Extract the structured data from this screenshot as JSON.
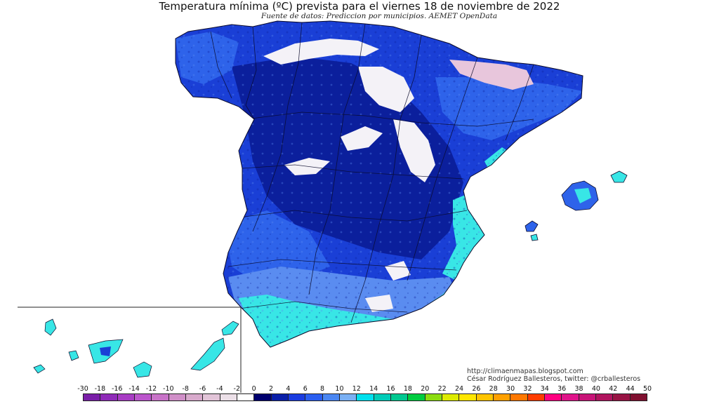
{
  "header": {
    "title": "Temperatura mínima (ºC) prevista para el viernes 18 de noviembre de 2022",
    "subtitle": "Fuente de datos: Prediccion por municipios. AEMET OpenData"
  },
  "footer": {
    "blog": "http://climaenmapas.blogspot.com",
    "credit": "César Rodríguez Ballesteros, twitter: @crballesteros"
  },
  "legend": {
    "ticks": [
      "-30",
      "-18",
      "-16",
      "-14",
      "-12",
      "-10",
      "-8",
      "-6",
      "-4",
      "-2",
      "0",
      "2",
      "4",
      "6",
      "8",
      "10",
      "12",
      "14",
      "16",
      "18",
      "20",
      "22",
      "24",
      "26",
      "28",
      "30",
      "32",
      "34",
      "36",
      "38",
      "40",
      "42",
      "44",
      "50"
    ],
    "colors": [
      "#7a1fa8",
      "#8f2bb8",
      "#a83cc4",
      "#bb55cc",
      "#c873c8",
      "#d08fc8",
      "#d8aacc",
      "#e2c4d8",
      "#ece0e8",
      "#ffffff",
      "#00006e",
      "#0a1fa8",
      "#1a3ce0",
      "#2a5ef0",
      "#4a86f2",
      "#7ab0f4",
      "#00e0ee",
      "#00ccb8",
      "#00c890",
      "#00cc40",
      "#8cdc10",
      "#ddeb00",
      "#ffe600",
      "#ffc400",
      "#ffa000",
      "#ff7800",
      "#ff3c00",
      "#ff0080",
      "#e0148a",
      "#c81478",
      "#b0145e",
      "#981444",
      "#801030"
    ]
  },
  "map": {
    "colors": {
      "sea": "#ffffff",
      "deep_blue": "#0b1f9c",
      "blue": "#1a3fd6",
      "mid_blue": "#2e63ea",
      "light_blue": "#5a8cf0",
      "cyan": "#38e6e6",
      "snow": "#f4f2f7",
      "pink": "#e8c6dc",
      "border": "#0a0a2a"
    }
  }
}
